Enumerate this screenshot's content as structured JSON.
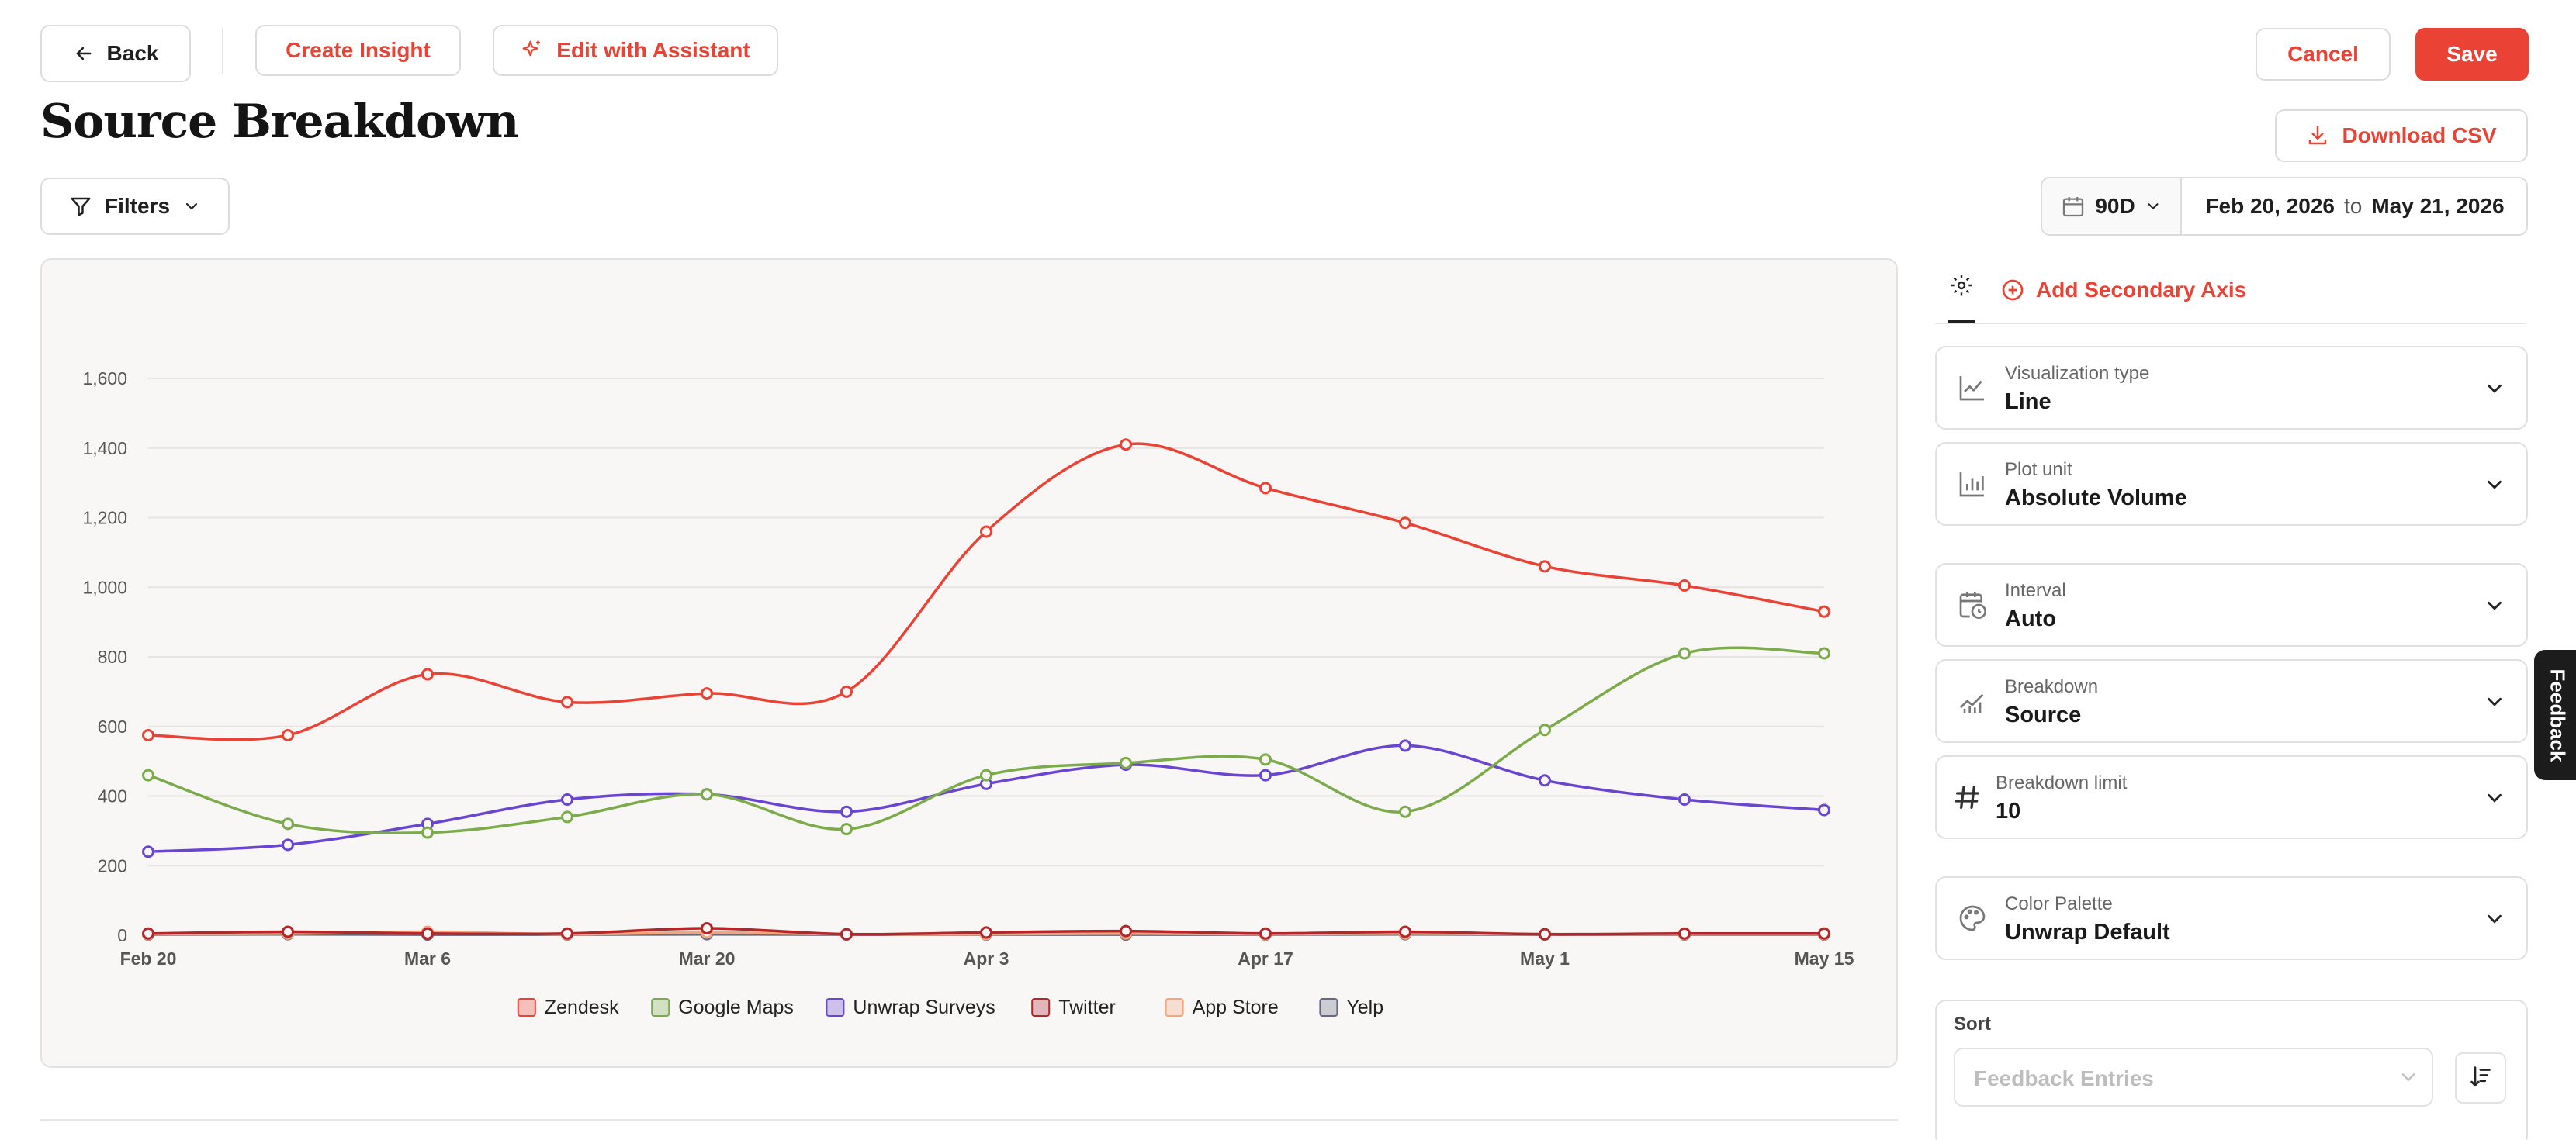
{
  "toolbar": {
    "back_label": "Back",
    "create_insight_label": "Create Insight",
    "edit_assistant_label": "Edit with Assistant",
    "cancel_label": "Cancel",
    "save_label": "Save",
    "download_csv_label": "Download CSV"
  },
  "page": {
    "title": "Source Breakdown"
  },
  "filters": {
    "label": "Filters"
  },
  "date_range": {
    "preset": "90D",
    "start": "Feb 20, 2026",
    "to": "to",
    "end": "May 21, 2026"
  },
  "panel": {
    "add_axis_label": "Add Secondary Axis",
    "fields": [
      {
        "label": "Visualization type",
        "value": "Line",
        "icon": "line-chart-icon"
      },
      {
        "label": "Plot unit",
        "value": "Absolute Volume",
        "icon": "bar-chart-icon"
      },
      {
        "label": "Interval",
        "value": "Auto",
        "icon": "calendar-clock-icon"
      },
      {
        "label": "Breakdown",
        "value": "Source",
        "icon": "trend-icon"
      },
      {
        "label": "Breakdown limit",
        "value": "10",
        "icon": "hash-icon"
      },
      {
        "label": "Color Palette",
        "value": "Unwrap Default",
        "icon": "palette-icon"
      }
    ],
    "sort": {
      "label": "Sort",
      "placeholder": "Feedback Entries"
    }
  },
  "feedback_tab": {
    "label": "Feedback"
  },
  "chart_data": {
    "type": "line",
    "x": [
      "Feb 20",
      "Feb 27",
      "Mar 6",
      "Mar 13",
      "Mar 20",
      "Mar 27",
      "Apr 3",
      "Apr 10",
      "Apr 17",
      "Apr 24",
      "May 1",
      "May 8",
      "May 15"
    ],
    "x_ticks": [
      "Feb 20",
      "Mar 6",
      "Mar 20",
      "Apr 3",
      "Apr 17",
      "May 1",
      "May 15"
    ],
    "y_ticks": [
      "0",
      "200",
      "400",
      "600",
      "800",
      "1,000",
      "1,200",
      "1,400",
      "1,600"
    ],
    "ylim": [
      0,
      1600
    ],
    "grid": true,
    "legend_position": "bottom-center",
    "series": [
      {
        "name": "Zendesk",
        "color": "#ea4335",
        "values": [
          575,
          575,
          750,
          670,
          695,
          700,
          1160,
          1410,
          1285,
          1185,
          1060,
          1005,
          930
        ]
      },
      {
        "name": "Google Maps",
        "color": "#7cab4b",
        "values": [
          460,
          320,
          295,
          340,
          405,
          305,
          460,
          495,
          505,
          355,
          590,
          810,
          810
        ]
      },
      {
        "name": "Unwrap Surveys",
        "color": "#6a45d1",
        "values": [
          240,
          260,
          320,
          390,
          405,
          355,
          435,
          490,
          460,
          545,
          445,
          390,
          360
        ]
      },
      {
        "name": "Twitter",
        "color": "#b3262a",
        "values": [
          5,
          10,
          5,
          5,
          20,
          3,
          8,
          12,
          5,
          10,
          3,
          5,
          5
        ]
      },
      {
        "name": "App Store",
        "color": "#f6a47a",
        "values": [
          3,
          5,
          10,
          3,
          8,
          3,
          3,
          5,
          3,
          5,
          3,
          3,
          3
        ]
      },
      {
        "name": "Yelp",
        "color": "#666a80",
        "values": [
          2,
          3,
          2,
          2,
          3,
          2,
          2,
          2,
          2,
          3,
          2,
          2,
          2
        ]
      }
    ]
  }
}
